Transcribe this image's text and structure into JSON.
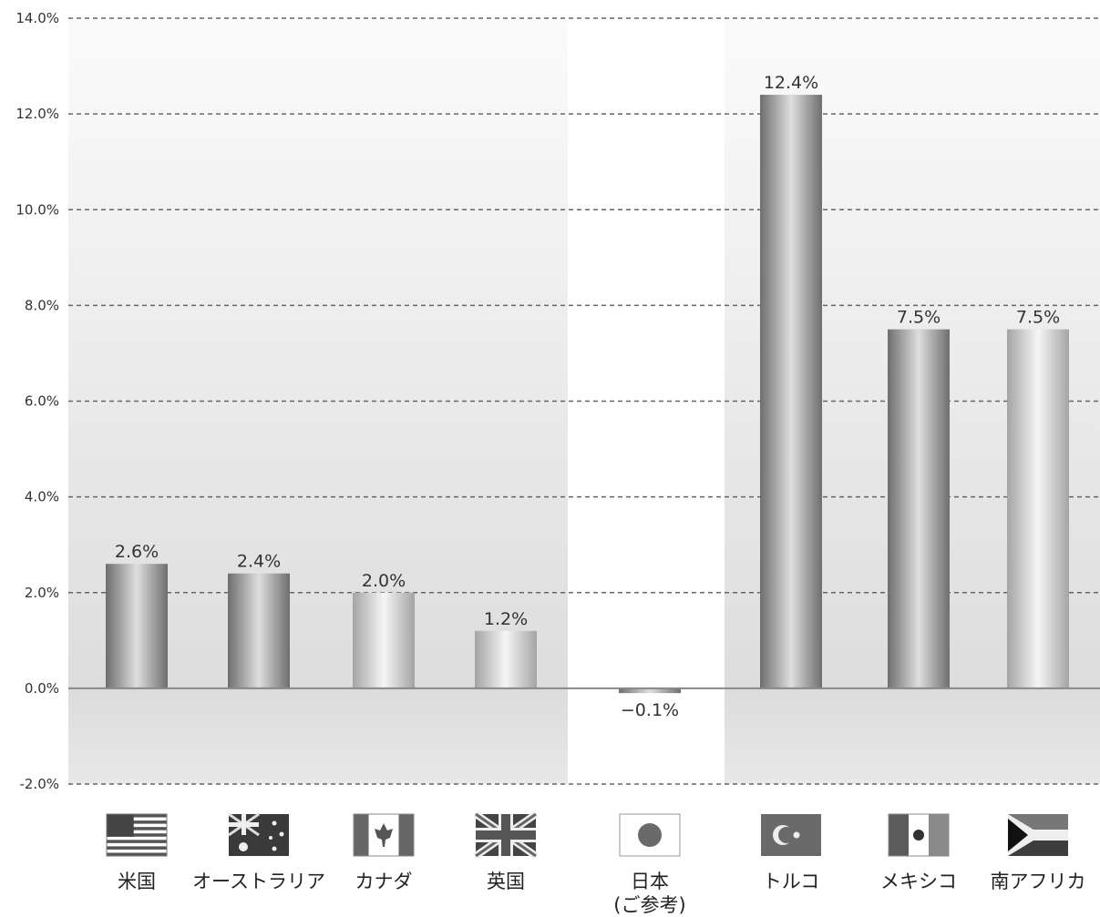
{
  "chart_data": {
    "type": "bar",
    "categories": [
      "米国",
      "オーストラリア",
      "カナダ",
      "英国",
      "日本",
      "トルコ",
      "メキシコ",
      "南アフリカ"
    ],
    "category_sublabels": [
      "",
      "",
      "",
      "",
      "(ご参考)",
      "",
      "",
      ""
    ],
    "values": [
      2.6,
      2.4,
      2.0,
      1.2,
      -0.1,
      12.4,
      7.5,
      7.5
    ],
    "value_labels": [
      "2.6%",
      "2.4%",
      "2.0%",
      "1.2%",
      "−0.1%",
      "12.4%",
      "7.5%",
      "7.5%"
    ],
    "yticks": [
      -2,
      0,
      2,
      4,
      6,
      8,
      10,
      12,
      14
    ],
    "ytick_labels": [
      "-2.0%",
      "0.0%",
      "2.0%",
      "4.0%",
      "6.0%",
      "8.0%",
      "10.0%",
      "12.0%",
      "14.0%"
    ],
    "ylim": [
      -2,
      14
    ],
    "title": "",
    "xlabel": "",
    "ylabel": "",
    "grid": true,
    "bar_shades": [
      "dark",
      "dark",
      "light",
      "light",
      "dark",
      "dark",
      "dark",
      "light"
    ],
    "groups": [
      {
        "categories": [
          0,
          1,
          2,
          3
        ],
        "background": "#e6e6e6"
      },
      {
        "categories": [
          4
        ],
        "background": "#ffffff"
      },
      {
        "categories": [
          5,
          6,
          7
        ],
        "background": "#e6e6e6"
      }
    ],
    "flags": [
      "us-flag-icon",
      "australia-flag-icon",
      "canada-flag-icon",
      "uk-flag-icon",
      "japan-flag-icon",
      "turkey-flag-icon",
      "mexico-flag-icon",
      "south-africa-flag-icon"
    ]
  }
}
